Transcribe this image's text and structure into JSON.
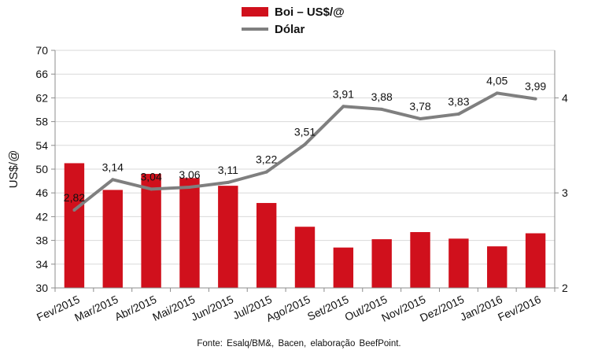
{
  "chart_data": {
    "type": "bar+line",
    "categories": [
      "Fev/2015",
      "Mar/2015",
      "Abr/2015",
      "Mai/2015",
      "Jun/2015",
      "Jul/2015",
      "Ago/2015",
      "Set/2015",
      "Out/2015",
      "Nov/2015",
      "Dez/2015",
      "Jan/2016",
      "Fev/2016"
    ],
    "series": [
      {
        "name": "Boi – US$/@",
        "type": "bar",
        "axis": "left",
        "color": "#d0101c",
        "values": [
          51.0,
          46.5,
          49.2,
          48.5,
          47.2,
          44.3,
          40.3,
          36.8,
          38.2,
          39.4,
          38.3,
          37.0,
          39.2
        ]
      },
      {
        "name": "Dólar",
        "type": "line",
        "axis": "right",
        "color": "#7f7f7f",
        "values": [
          2.82,
          3.14,
          3.04,
          3.06,
          3.11,
          3.22,
          3.51,
          3.91,
          3.88,
          3.78,
          3.83,
          4.05,
          3.99
        ],
        "labels": [
          "2,82",
          "3,14",
          "3,04",
          "3,06",
          "3,11",
          "3,22",
          "3,51",
          "3,91",
          "3,88",
          "3,78",
          "3,83",
          "4,05",
          "3,99"
        ]
      }
    ],
    "ylabel": "US$/@",
    "ylim": [
      30,
      70
    ],
    "yticks": [
      30,
      34,
      38,
      42,
      46,
      50,
      54,
      58,
      62,
      66,
      70
    ],
    "y2lim": [
      2,
      4.5
    ],
    "y2ticks": [
      2,
      3,
      4
    ],
    "grid": true,
    "legend_position": "top-center",
    "source": "Fonte:  Esalq/BM&,  Bacen,  elaboração  BeefPoint."
  }
}
